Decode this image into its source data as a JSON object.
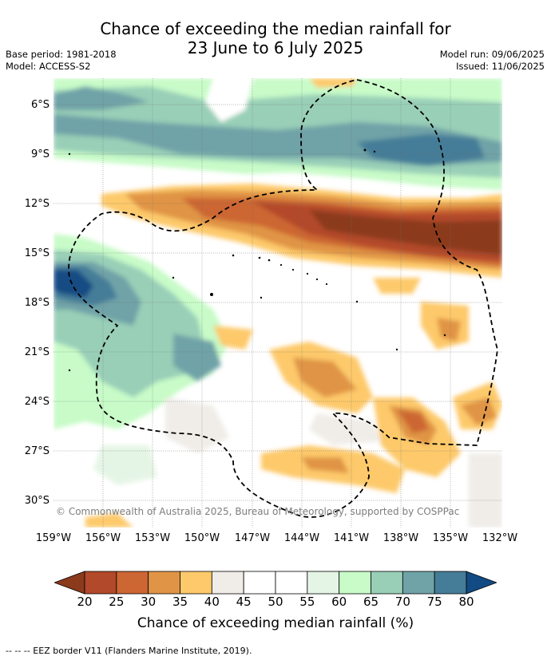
{
  "title_line1": "Chance of exceeding the median rainfall for",
  "title_line2": "23 June to 6 July 2025",
  "meta_left": [
    "Base period: 1981-2018",
    "Model: ACCESS-S2"
  ],
  "meta_right": [
    "Model run: 09/06/2025",
    "Issued: 11/06/2025"
  ],
  "lat_labels": [
    "6°S",
    "9°S",
    "12°S",
    "15°S",
    "18°S",
    "21°S",
    "24°S",
    "27°S",
    "30°S"
  ],
  "lon_labels": [
    "159°W",
    "156°W",
    "153°W",
    "150°W",
    "147°W",
    "144°W",
    "141°W",
    "138°W",
    "135°W",
    "132°W"
  ],
  "copyright": "© Commonwealth of Australia 2025, Bureau of Meteorology, supported by COSPPac",
  "colorbar": {
    "label": "Chance of exceeding median rainfall (%)",
    "ticks": [
      "20",
      "25",
      "30",
      "35",
      "40",
      "45",
      "50",
      "55",
      "60",
      "65",
      "70",
      "75",
      "80"
    ],
    "colors": [
      "#8b3a1c",
      "#b2492a",
      "#cc6633",
      "#e09445",
      "#fdc96b",
      "#f0ede8",
      "#ffffff",
      "#ffffff",
      "#e5f5e5",
      "#c8fbc8",
      "#99cfb7",
      "#6fa3a7",
      "#457d98",
      "#124b84"
    ]
  },
  "footer": "-- -- -- EEZ border V11 (Flanders Marine Institute, 2019)."
}
